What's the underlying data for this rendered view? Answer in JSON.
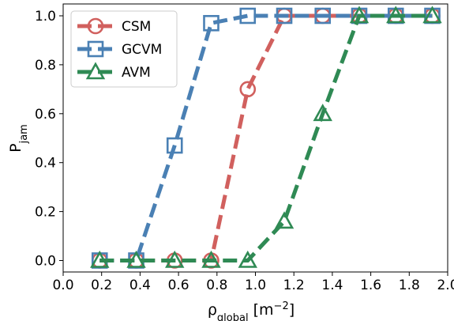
{
  "chart_data": {
    "type": "line",
    "xlabel": {
      "main": "ρ",
      "sub": "global",
      "unit_open": " [m",
      "unit_sup": "−2",
      "unit_close": "]"
    },
    "ylabel": {
      "main": "P",
      "sub": "jam"
    },
    "xlim": [
      0.0,
      2.0
    ],
    "ylim": [
      -0.05,
      1.05
    ],
    "xticks": [
      "0.0",
      "0.2",
      "0.4",
      "0.6",
      "0.8",
      "1.0",
      "1.2",
      "1.4",
      "1.6",
      "1.8",
      "2.0"
    ],
    "yticks": [
      "0.0",
      "0.2",
      "0.4",
      "0.6",
      "0.8",
      "1.0"
    ],
    "grid": false,
    "legend_position": "upper-left",
    "x": [
      0.19,
      0.38,
      0.58,
      0.77,
      0.96,
      1.15,
      1.35,
      1.54,
      1.73,
      1.92
    ],
    "series": [
      {
        "name": "CSM",
        "marker": "circle",
        "color": "#d1605e",
        "values": [
          0.0,
          0.0,
          0.0,
          0.0,
          0.7,
          1.0,
          1.0,
          1.0,
          1.0,
          1.0
        ]
      },
      {
        "name": "GCVM",
        "marker": "square",
        "color": "#4a80b4",
        "values": [
          0.0,
          0.0,
          0.47,
          0.97,
          1.0,
          1.0,
          1.0,
          1.0,
          1.0,
          1.0
        ]
      },
      {
        "name": "AVM",
        "marker": "triangle",
        "color": "#2f8a54",
        "values": [
          0.0,
          0.0,
          0.0,
          0.0,
          0.0,
          0.16,
          0.6,
          1.0,
          1.0,
          1.0
        ]
      }
    ]
  }
}
